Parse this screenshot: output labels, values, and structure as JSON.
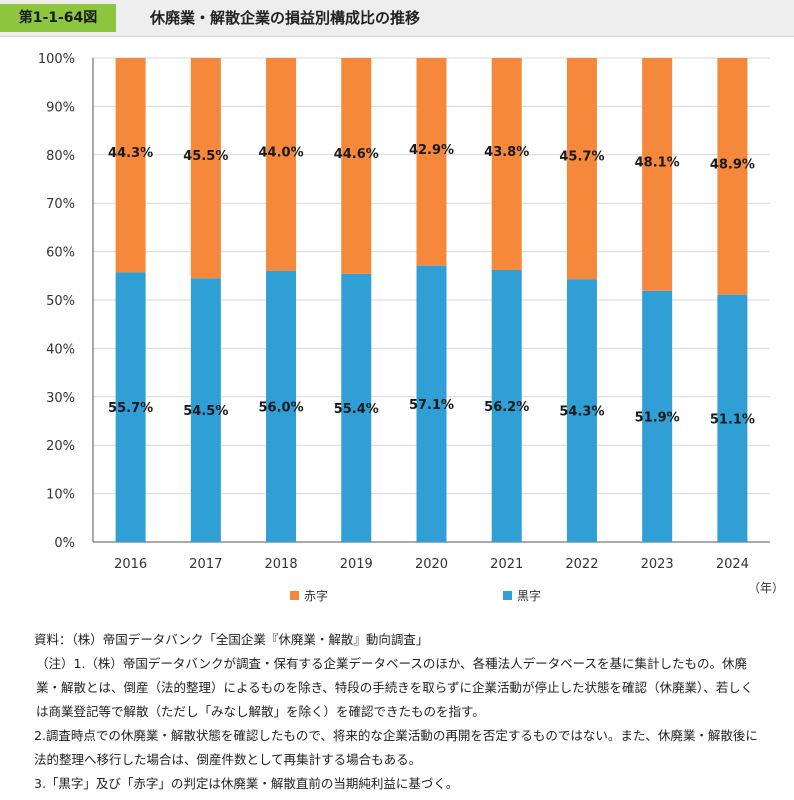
{
  "header": {
    "figure_number": "第1-1-64図",
    "title": "休廃業・解散企業の損益別構成比の推移"
  },
  "chart_data": {
    "type": "bar",
    "stacked": true,
    "categories": [
      "2016",
      "2017",
      "2018",
      "2019",
      "2020",
      "2021",
      "2022",
      "2023",
      "2024"
    ],
    "series": [
      {
        "name": "黒字",
        "values": [
          55.7,
          54.5,
          56.0,
          55.4,
          57.1,
          56.2,
          54.3,
          51.9,
          51.1
        ],
        "color": "#2f9fd6",
        "labels": [
          "55.7%",
          "54.5%",
          "56.0%",
          "55.4%",
          "57.1%",
          "56.2%",
          "54.3%",
          "51.9%",
          "51.1%"
        ]
      },
      {
        "name": "赤字",
        "values": [
          44.3,
          45.5,
          44.0,
          44.6,
          42.9,
          43.8,
          45.7,
          48.1,
          48.9
        ],
        "color": "#f5883a",
        "labels": [
          "44.3%",
          "45.5%",
          "44.0%",
          "44.6%",
          "42.9%",
          "43.8%",
          "45.7%",
          "48.1%",
          "48.9%"
        ]
      }
    ],
    "ylim": [
      0,
      100
    ],
    "yticks": [
      "0%",
      "10%",
      "20%",
      "30%",
      "40%",
      "50%",
      "60%",
      "70%",
      "80%",
      "90%",
      "100%"
    ],
    "xunit": "（年）",
    "legend": [
      "赤字",
      "黒字"
    ],
    "legend_position": "bottom",
    "grid": true
  },
  "notes": {
    "source": "資料：（株）帝国データバンク「全国企業『休廃業・解散』動向調査」",
    "note1": "（注）1.（株）帝国データバンクが調査・保有する企業データベースのほか、各種法人データベースを基に集計したもの。休廃業・解散とは、倒産（法的整理）によるものを除き、特段の手続きを取らずに企業活動が停止した状態を確認（休廃業）、若しくは商業登記等で解散（ただし「みなし解散」を除く）を確認できたものを指す。",
    "note2": "2.調査時点での休廃業・解散状態を確認したもので、将来的な企業活動の再開を否定するものではない。また、休廃業・解散後に法的整理へ移行した場合は、倒産件数として再集計する場合もある。",
    "note3": "3.「黒字」及び「赤字」の判定は休廃業・解散直前の当期純利益に基づく。"
  }
}
